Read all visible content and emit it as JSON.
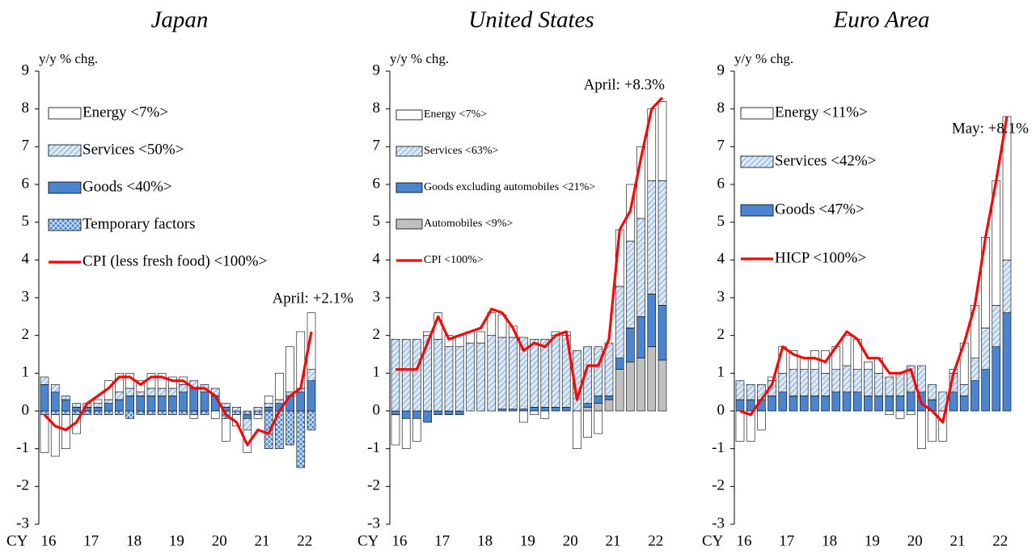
{
  "chart_data": [
    {
      "type": "bar",
      "title": "Japan",
      "y_label": "y/y % chg.",
      "x_label": "CY",
      "categories": [
        "16",
        null,
        null,
        null,
        "17",
        null,
        null,
        null,
        "18",
        null,
        null,
        null,
        "19",
        null,
        null,
        null,
        "20",
        null,
        null,
        null,
        "21",
        null,
        null,
        null,
        "22",
        null
      ],
      "ylim": [
        -3,
        9
      ],
      "yticks": [
        -3,
        -2,
        -1,
        0,
        1,
        2,
        3,
        4,
        5,
        6,
        7,
        8,
        9
      ],
      "annotation": "April:  +2.1%",
      "series": [
        {
          "name": "Energy <7%>",
          "kind": "bar",
          "color": "#ffffff",
          "pattern": "none",
          "values": [
            -1.0,
            -1.1,
            -0.9,
            -0.5,
            0.0,
            0.1,
            0.5,
            0.5,
            0.4,
            0.3,
            0.4,
            0.4,
            0.3,
            0.2,
            -0.1,
            0.0,
            -0.2,
            -0.6,
            -0.3,
            -0.6,
            -0.1,
            0.2,
            0.7,
            1.2,
            1.5,
            1.5
          ]
        },
        {
          "name": "Services <50%>",
          "kind": "bar",
          "color": "#dbe8f6",
          "pattern": "hatch",
          "values": [
            0.2,
            0.2,
            0.1,
            0.1,
            0.1,
            0.1,
            0.1,
            0.2,
            0.2,
            0.1,
            0.2,
            0.2,
            0.2,
            0.2,
            0.2,
            0.2,
            0.2,
            0.1,
            0.1,
            -0.3,
            0.1,
            0.1,
            0.1,
            0.1,
            0.1,
            0.3
          ]
        },
        {
          "name": "Goods <40%>",
          "kind": "bar",
          "color": "#4a86d0",
          "pattern": "none",
          "values": [
            0.7,
            0.5,
            0.3,
            0.1,
            0.1,
            0.1,
            0.2,
            0.3,
            0.4,
            0.4,
            0.4,
            0.4,
            0.4,
            0.5,
            0.6,
            0.5,
            0.4,
            0.1,
            0.0,
            -0.1,
            0.0,
            0.1,
            0.2,
            0.4,
            0.5,
            0.8
          ]
        },
        {
          "name": "Temporary factors",
          "kind": "bar",
          "color": "#4a86d0",
          "pattern": "cross",
          "values": [
            -0.1,
            -0.1,
            -0.1,
            -0.1,
            -0.1,
            -0.1,
            -0.1,
            -0.1,
            -0.2,
            -0.1,
            -0.1,
            -0.1,
            -0.1,
            -0.1,
            -0.1,
            -0.1,
            0.0,
            -0.2,
            -0.1,
            -0.1,
            -0.1,
            -1.0,
            -1.0,
            -0.9,
            -1.5,
            -0.5
          ]
        },
        {
          "name": "CPI (less fresh food) <100%>",
          "kind": "line",
          "color": "#ff0000",
          "values": [
            -0.1,
            -0.4,
            -0.5,
            -0.3,
            0.2,
            0.4,
            0.6,
            0.9,
            0.9,
            0.7,
            0.9,
            0.9,
            0.8,
            0.8,
            0.6,
            0.6,
            0.4,
            -0.1,
            -0.3,
            -0.9,
            -0.5,
            -0.6,
            0.0,
            0.4,
            0.6,
            2.1
          ]
        }
      ]
    },
    {
      "type": "bar",
      "title": "United States",
      "y_label": "y/y % chg.",
      "x_label": "CY",
      "categories": [
        "16",
        null,
        null,
        null,
        "17",
        null,
        null,
        null,
        "18",
        null,
        null,
        null,
        "19",
        null,
        null,
        null,
        "20",
        null,
        null,
        null,
        "21",
        null,
        null,
        null,
        "22",
        null
      ],
      "ylim": [
        -3,
        9
      ],
      "yticks": [
        -3,
        -2,
        -1,
        0,
        1,
        2,
        3,
        4,
        5,
        6,
        7,
        8,
        9
      ],
      "annotation": "April:  +8.3%",
      "series": [
        {
          "name": "Energy <7%>",
          "kind": "bar",
          "color": "#ffffff",
          "pattern": "none",
          "values": [
            -0.8,
            -0.8,
            -0.6,
            0.1,
            0.7,
            0.3,
            0.3,
            0.3,
            0.3,
            0.6,
            0.6,
            0.3,
            -0.3,
            -0.1,
            -0.2,
            0.1,
            0.1,
            -1.0,
            -0.7,
            -0.6,
            0.0,
            1.5,
            1.5,
            1.9,
            1.9,
            2.1
          ]
        },
        {
          "name": "Services <63%>",
          "kind": "bar",
          "color": "#dbe8f6",
          "pattern": "hatch",
          "values": [
            1.9,
            1.9,
            1.9,
            2.0,
            1.9,
            1.7,
            1.7,
            1.8,
            1.8,
            2.0,
            1.9,
            1.9,
            1.9,
            1.8,
            1.8,
            1.9,
            1.9,
            1.6,
            1.5,
            1.3,
            1.4,
            1.9,
            2.3,
            2.6,
            3.0,
            3.3
          ]
        },
        {
          "name": "Goods excluding automobiles <21%>",
          "kind": "bar",
          "color": "#4a86d0",
          "pattern": "none",
          "values": [
            -0.1,
            -0.2,
            -0.2,
            -0.3,
            -0.1,
            -0.1,
            -0.1,
            0.0,
            0.0,
            0.0,
            0.05,
            0.05,
            0.05,
            0.1,
            0.1,
            0.1,
            0.1,
            0.0,
            0.1,
            0.2,
            0.1,
            0.3,
            0.9,
            1.1,
            1.4,
            1.45
          ]
        },
        {
          "name": "Automobiles <9%>",
          "kind": "bar",
          "color": "#bfbfbf",
          "pattern": "none",
          "values": [
            0,
            0,
            0,
            0,
            0,
            0,
            0,
            0,
            0,
            0,
            0,
            0,
            0,
            0,
            0,
            0,
            0,
            0,
            0.1,
            0.2,
            0.3,
            1.1,
            1.3,
            1.4,
            1.7,
            1.35
          ]
        },
        {
          "name": "CPI <100%>",
          "kind": "line",
          "color": "#ff0000",
          "values": [
            1.1,
            1.1,
            1.1,
            1.8,
            2.5,
            1.9,
            2.0,
            2.1,
            2.2,
            2.7,
            2.6,
            2.2,
            1.6,
            1.8,
            1.7,
            2.0,
            2.1,
            0.3,
            1.2,
            1.2,
            1.9,
            4.8,
            5.3,
            6.7,
            8.0,
            8.3
          ]
        }
      ]
    },
    {
      "type": "bar",
      "title": "Euro Area",
      "y_label": "y/y % chg.",
      "x_label": "CY",
      "categories": [
        "16",
        null,
        null,
        null,
        "17",
        null,
        null,
        null,
        "18",
        null,
        null,
        null,
        "19",
        null,
        null,
        null,
        "20",
        null,
        null,
        null,
        "21",
        null,
        null,
        null,
        "22",
        null
      ],
      "ylim": [
        -3,
        9
      ],
      "yticks": [
        -3,
        -2,
        -1,
        0,
        1,
        2,
        3,
        4,
        5,
        6,
        7,
        8,
        9
      ],
      "annotation": "May:  +8.1%",
      "series": [
        {
          "name": "Energy <11%>",
          "kind": "bar",
          "color": "#ffffff",
          "pattern": "none",
          "values": [
            -0.8,
            -0.8,
            -0.5,
            0.1,
            0.7,
            0.5,
            0.3,
            0.5,
            0.6,
            0.6,
            0.8,
            0.8,
            0.2,
            0.4,
            -0.1,
            -0.2,
            -0.1,
            -1.0,
            -0.8,
            -0.8,
            0.1,
            1.1,
            1.4,
            2.4,
            3.3,
            3.8
          ]
        },
        {
          "name": "Services <42%>",
          "kind": "bar",
          "color": "#dbe8f6",
          "pattern": "hatch",
          "values": [
            0.5,
            0.4,
            0.4,
            0.4,
            0.5,
            0.7,
            0.7,
            0.7,
            0.6,
            0.6,
            0.7,
            0.6,
            0.7,
            0.6,
            0.5,
            0.6,
            0.7,
            0.7,
            0.4,
            0.5,
            0.5,
            0.3,
            0.6,
            1.1,
            1.1,
            1.4
          ]
        },
        {
          "name": "Goods <47%>",
          "kind": "bar",
          "color": "#4a86d0",
          "pattern": "none",
          "values": [
            0.3,
            0.3,
            0.3,
            0.4,
            0.5,
            0.4,
            0.4,
            0.4,
            0.4,
            0.5,
            0.5,
            0.5,
            0.4,
            0.4,
            0.4,
            0.4,
            0.5,
            0.5,
            0.3,
            0.0,
            0.5,
            0.4,
            0.8,
            1.1,
            1.7,
            2.6
          ]
        },
        {
          "name": "HICP <100%>",
          "kind": "line",
          "color": "#ff0000",
          "values": [
            0.0,
            -0.1,
            0.3,
            0.7,
            1.7,
            1.5,
            1.4,
            1.4,
            1.3,
            1.7,
            2.1,
            1.9,
            1.4,
            1.4,
            1.0,
            1.0,
            1.1,
            0.2,
            0.0,
            -0.3,
            1.0,
            1.8,
            2.8,
            4.6,
            6.1,
            7.8
          ]
        }
      ]
    }
  ]
}
